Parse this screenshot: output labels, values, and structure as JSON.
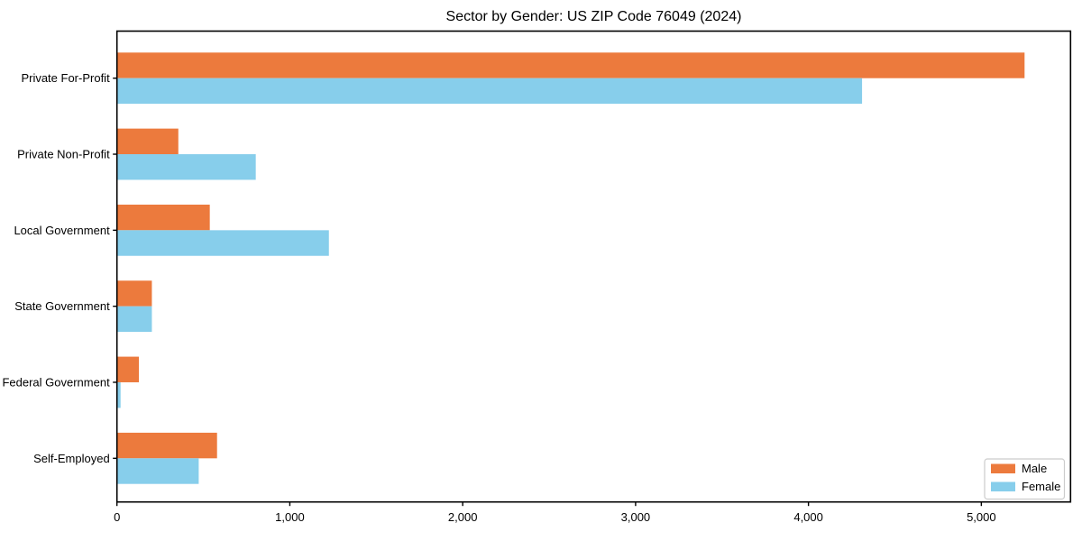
{
  "chart_data": {
    "type": "bar",
    "orientation": "horizontal",
    "title": "Sector by Gender: US ZIP Code 76049 (2024)",
    "categories": [
      "Private For-Profit",
      "Private Non-Profit",
      "Local Government",
      "State Government",
      "Federal Government",
      "Self-Employed"
    ],
    "series": [
      {
        "name": "Male",
        "color": "#ec7a3d",
        "values": [
          5250,
          355,
          537,
          202,
          127,
          579
        ]
      },
      {
        "name": "Female",
        "color": "#87ceeb",
        "values": [
          4310,
          803,
          1226,
          202,
          21,
          473
        ]
      }
    ],
    "xlabel": "",
    "ylabel": "",
    "xlim": [
      0,
      5516
    ],
    "xticks": [
      0,
      1000,
      2000,
      3000,
      4000,
      5000
    ],
    "xtick_labels": [
      "0",
      "1,000",
      "2,000",
      "3,000",
      "4,000",
      "5,000"
    ],
    "grid": false,
    "legend": {
      "position": "lower right",
      "entries": [
        "Male",
        "Female"
      ]
    },
    "colors": {
      "background": "#ffffff",
      "axis": "#000000",
      "legend_border": "#cccccc"
    }
  }
}
